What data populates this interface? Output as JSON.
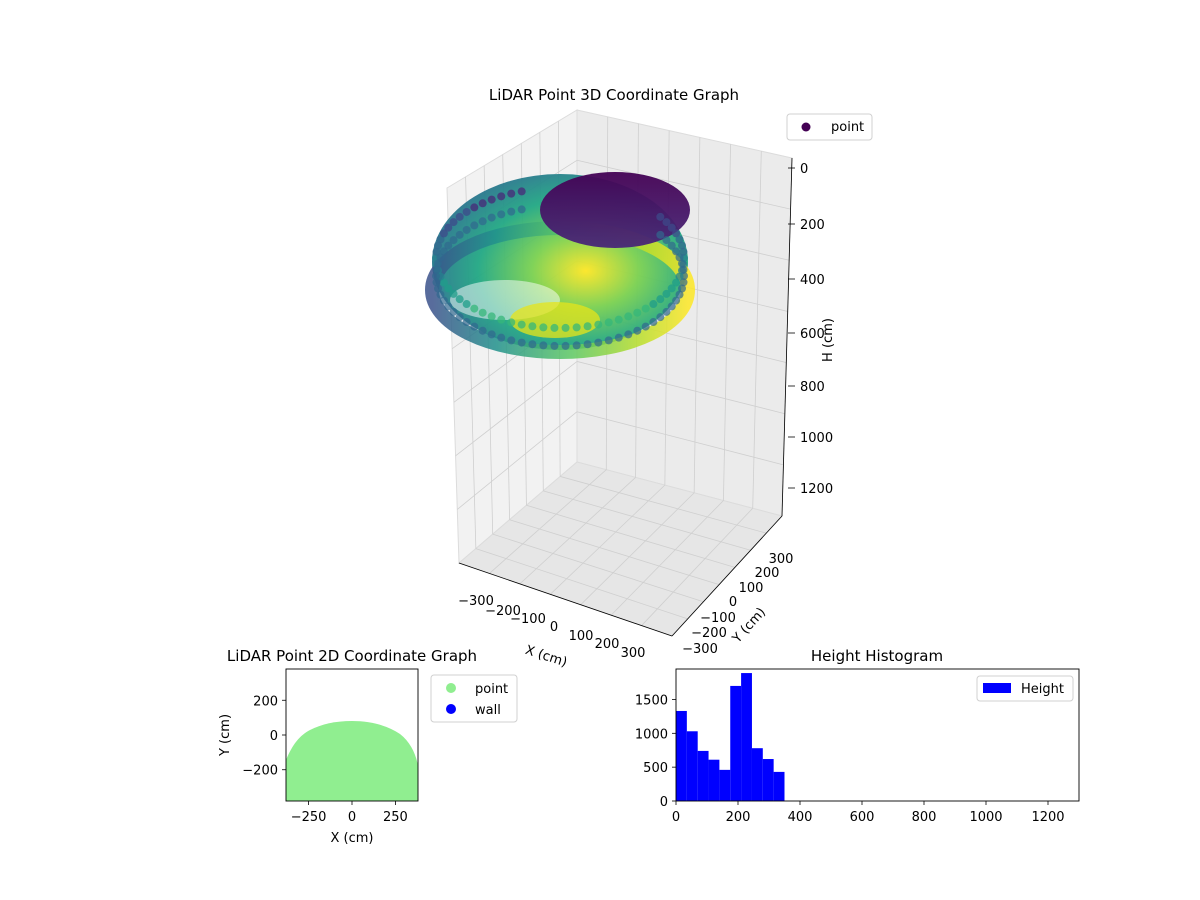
{
  "colors": {
    "hist_bar": "#0000ff",
    "scatter_point": "#90ee90",
    "scatter_wall": "#0000ff",
    "legend_point_3d": "#440154",
    "colormap": "viridis"
  },
  "chart_data": [
    {
      "id": "lidar-3d",
      "type": "scatter",
      "projection": "3d",
      "title": "LiDAR Point 3D Coordinate Graph",
      "xlabel": "X (cm)",
      "ylabel": "Y (cm)",
      "zlabel": "H (cm)",
      "xticks": [
        "−300",
        "−200",
        "−100",
        "0",
        "100",
        "200",
        "300"
      ],
      "yticks": [
        "−300",
        "−200",
        "−100",
        "0",
        "100",
        "200",
        "300"
      ],
      "zticks": [
        "0",
        "200",
        "400",
        "600",
        "800",
        "1000",
        "1200"
      ],
      "zlim": [
        0,
        1300
      ],
      "z_inverted": true,
      "legend": [
        {
          "name": "point",
          "color": "#440154"
        }
      ],
      "legend_position": "upper-right",
      "point_description": "dense ring of points around radius ~380 cm at heights ~150–350 cm, colored by viridis colormap"
    },
    {
      "id": "lidar-2d",
      "type": "scatter",
      "title": "LiDAR Point 2D Coordinate Graph",
      "xlabel": "X (cm)",
      "ylabel": "Y (cm)",
      "xticks": [
        "−250",
        "0",
        "250"
      ],
      "yticks": [
        "200",
        "0",
        "−200"
      ],
      "xlim": [
        -380,
        380
      ],
      "ylim": [
        -380,
        380
      ],
      "legend": [
        {
          "name": "point",
          "color": "#90ee90"
        },
        {
          "name": "wall",
          "color": "#0000ff"
        }
      ],
      "legend_position": "outside-right"
    },
    {
      "id": "height-histogram",
      "type": "bar",
      "title": "Height Histogram",
      "legend": [
        {
          "name": "Height",
          "color": "#0000ff"
        }
      ],
      "legend_position": "top-right",
      "xlim": [
        0,
        1300
      ],
      "ylim": [
        0,
        1950
      ],
      "xticks": [
        0,
        200,
        400,
        600,
        800,
        1000,
        1200
      ],
      "yticks": [
        0,
        500,
        1000,
        1500
      ],
      "bins": [
        {
          "x0": 0,
          "x1": 35,
          "value": 1330
        },
        {
          "x0": 35,
          "x1": 70,
          "value": 1030
        },
        {
          "x0": 70,
          "x1": 105,
          "value": 740
        },
        {
          "x0": 105,
          "x1": 140,
          "value": 610
        },
        {
          "x0": 140,
          "x1": 175,
          "value": 460
        },
        {
          "x0": 175,
          "x1": 210,
          "value": 1700
        },
        {
          "x0": 210,
          "x1": 245,
          "value": 1890
        },
        {
          "x0": 245,
          "x1": 280,
          "value": 780
        },
        {
          "x0": 280,
          "x1": 315,
          "value": 620
        },
        {
          "x0": 315,
          "x1": 350,
          "value": 430
        }
      ]
    }
  ]
}
